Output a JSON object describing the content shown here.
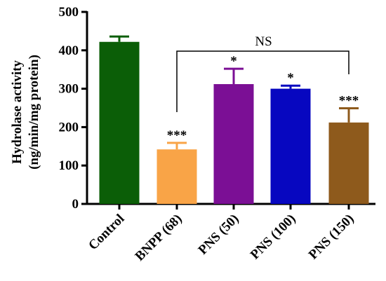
{
  "chart_data": {
    "type": "bar",
    "ylabel_lines": [
      "Hydrolase activity",
      "(ng/min/mg protein)"
    ],
    "ylim": [
      0,
      500
    ],
    "yticks": [
      0,
      100,
      200,
      300,
      400,
      500
    ],
    "grid": false,
    "categories": [
      "Control",
      "BNPP (68)",
      "PNS (50)",
      "PNS (100)",
      "PNS (150)"
    ],
    "values": [
      422,
      142,
      312,
      300,
      212
    ],
    "errors": [
      14,
      17,
      40,
      8,
      37
    ],
    "colors": [
      "#0b5e07",
      "#f9a447",
      "#7b0f95",
      "#0707c0",
      "#8e5a1c"
    ],
    "significance": [
      "",
      "***",
      "*",
      "*",
      "***"
    ],
    "bracket": {
      "from": 1,
      "to": 4,
      "label": "NS"
    }
  }
}
